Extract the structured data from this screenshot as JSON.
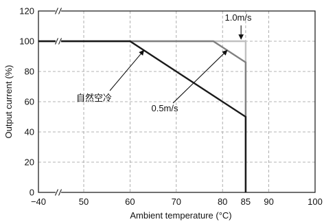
{
  "chart_data": {
    "type": "line",
    "title": "",
    "xlabel": "Ambient temperature (°C)",
    "ylabel": "Output current (%)",
    "x_ticks": [
      {
        "value": -40,
        "label": "−40"
      },
      {
        "value": 50,
        "label": "50"
      },
      {
        "value": 60,
        "label": "60"
      },
      {
        "value": 70,
        "label": "70"
      },
      {
        "value": 80,
        "label": "80"
      },
      {
        "value": 85,
        "label": "85"
      },
      {
        "value": 90,
        "label": "90"
      },
      {
        "value": 100,
        "label": "100"
      }
    ],
    "y_ticks": [
      0,
      20,
      40,
      60,
      80,
      100,
      120
    ],
    "xlim": [
      -40,
      100
    ],
    "ylim": [
      0,
      120
    ],
    "x_axis_break": "between −40 and 50",
    "grid": true,
    "series": [
      {
        "name": "自然空冷",
        "color": "#1a1a1a",
        "points": [
          [
            -40,
            100
          ],
          [
            60,
            100
          ],
          [
            85,
            50
          ],
          [
            85,
            0
          ]
        ]
      },
      {
        "name": "0.5m/s",
        "color": "#808080",
        "points": [
          [
            -40,
            100
          ],
          [
            78,
            100
          ],
          [
            85,
            86
          ],
          [
            85,
            0
          ]
        ]
      },
      {
        "name": "1.0m/s",
        "color": "#c0c0c0",
        "points": [
          [
            -40,
            100
          ],
          [
            85,
            100
          ],
          [
            85,
            0
          ]
        ]
      }
    ],
    "annotations": [
      {
        "text": "1.0m/s",
        "target_series": "1.0m/s"
      },
      {
        "text": "0.5m/s",
        "target_series": "0.5m/s"
      },
      {
        "text": "自然空冷",
        "target_series": "自然空冷"
      }
    ]
  }
}
